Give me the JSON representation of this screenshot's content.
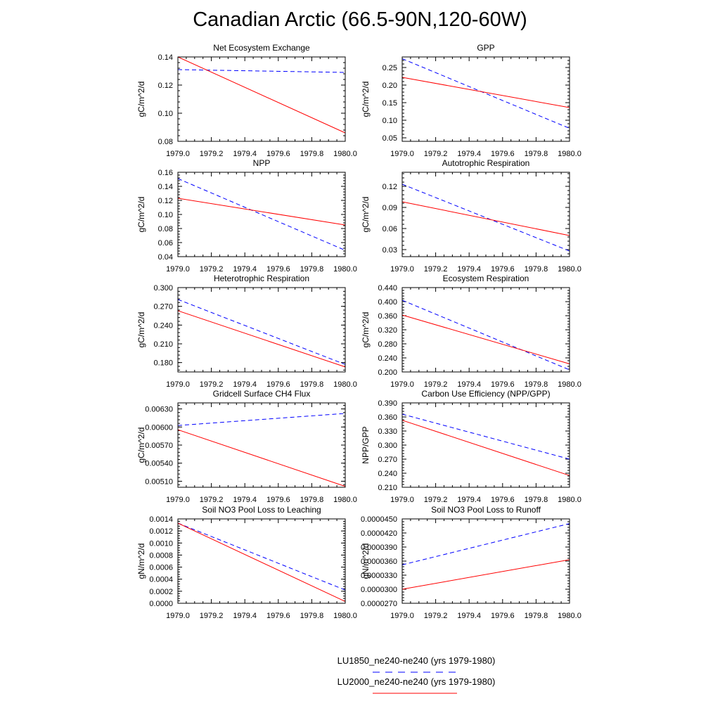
{
  "title": "Canadian Arctic (66.5-90N,120-60W)",
  "legend": [
    {
      "name": "LU1850_ne240-ne240 (yrs 1979-1980)",
      "color": "#0000ff",
      "dash": true
    },
    {
      "name": "LU2000_ne240-ne240 (yrs 1979-1980)",
      "color": "#ff0000",
      "dash": false
    }
  ],
  "chart_data": [
    {
      "type": "line",
      "title": "Net Ecosystem Exchange",
      "ylabel": "gC/m^2/d",
      "xlim": [
        1979.0,
        1980.0
      ],
      "ylim": [
        0.08,
        0.14
      ],
      "xticks": [
        "1979.0",
        "1979.2",
        "1979.4",
        "1979.6",
        "1979.8",
        "1980.0"
      ],
      "yticks": [
        "0.08",
        "0.10",
        "0.12",
        "0.14"
      ],
      "series": [
        {
          "name": "LU1850_ne240-ne240 (yrs 1979-1980)",
          "x": [
            1979.0,
            1980.0
          ],
          "values": [
            0.131,
            0.129
          ]
        },
        {
          "name": "LU2000_ne240-ne240 (yrs 1979-1980)",
          "x": [
            1979.0,
            1980.0
          ],
          "values": [
            0.14,
            0.086
          ]
        }
      ]
    },
    {
      "type": "line",
      "title": "GPP",
      "ylabel": "gC/m^2/d",
      "xlim": [
        1979.0,
        1980.0
      ],
      "ylim": [
        0.04,
        0.28
      ],
      "xticks": [
        "1979.0",
        "1979.2",
        "1979.4",
        "1979.6",
        "1979.8",
        "1980.0"
      ],
      "yticks": [
        "0.05",
        "0.10",
        "0.15",
        "0.20",
        "0.25"
      ],
      "series": [
        {
          "name": "LU1850_ne240-ne240 (yrs 1979-1980)",
          "x": [
            1979.0,
            1980.0
          ],
          "values": [
            0.275,
            0.077
          ]
        },
        {
          "name": "LU2000_ne240-ne240 (yrs 1979-1980)",
          "x": [
            1979.0,
            1980.0
          ],
          "values": [
            0.222,
            0.136
          ]
        }
      ]
    },
    {
      "type": "line",
      "title": "NPP",
      "ylabel": "gC/m^2/d",
      "xlim": [
        1979.0,
        1980.0
      ],
      "ylim": [
        0.04,
        0.16
      ],
      "xticks": [
        "1979.0",
        "1979.2",
        "1979.4",
        "1979.6",
        "1979.8",
        "1980.0"
      ],
      "yticks": [
        "0.04",
        "0.06",
        "0.08",
        "0.10",
        "0.12",
        "0.14",
        "0.16"
      ],
      "series": [
        {
          "name": "LU1850_ne240-ne240 (yrs 1979-1980)",
          "x": [
            1979.0,
            1980.0
          ],
          "values": [
            0.151,
            0.049
          ]
        },
        {
          "name": "LU2000_ne240-ne240 (yrs 1979-1980)",
          "x": [
            1979.0,
            1980.0
          ],
          "values": [
            0.123,
            0.085
          ]
        }
      ]
    },
    {
      "type": "line",
      "title": "Autotrophic Respiration",
      "ylabel": "gC/m^2/d",
      "xlim": [
        1979.0,
        1980.0
      ],
      "ylim": [
        0.02,
        0.14
      ],
      "xticks": [
        "1979.0",
        "1979.2",
        "1979.4",
        "1979.6",
        "1979.8",
        "1980.0"
      ],
      "yticks": [
        "0.03",
        "0.06",
        "0.09",
        "0.12"
      ],
      "series": [
        {
          "name": "LU1850_ne240-ne240 (yrs 1979-1980)",
          "x": [
            1979.0,
            1980.0
          ],
          "values": [
            0.123,
            0.028
          ]
        },
        {
          "name": "LU2000_ne240-ne240 (yrs 1979-1980)",
          "x": [
            1979.0,
            1980.0
          ],
          "values": [
            0.098,
            0.05
          ]
        }
      ]
    },
    {
      "type": "line",
      "title": "Heterotrophic Respiration",
      "ylabel": "gC/m^2/d",
      "xlim": [
        1979.0,
        1980.0
      ],
      "ylim": [
        0.165,
        0.3
      ],
      "xticks": [
        "1979.0",
        "1979.2",
        "1979.4",
        "1979.6",
        "1979.8",
        "1980.0"
      ],
      "yticks": [
        "0.180",
        "0.210",
        "0.240",
        "0.270",
        "0.300"
      ],
      "series": [
        {
          "name": "LU1850_ne240-ne240 (yrs 1979-1980)",
          "x": [
            1979.0,
            1980.0
          ],
          "values": [
            0.281,
            0.177
          ]
        },
        {
          "name": "LU2000_ne240-ne240 (yrs 1979-1980)",
          "x": [
            1979.0,
            1980.0
          ],
          "values": [
            0.263,
            0.173
          ]
        }
      ]
    },
    {
      "type": "line",
      "title": "Ecosystem Respiration",
      "ylabel": "gC/m^2/d",
      "xlim": [
        1979.0,
        1980.0
      ],
      "ylim": [
        0.2,
        0.44
      ],
      "xticks": [
        "1979.0",
        "1979.2",
        "1979.4",
        "1979.6",
        "1979.8",
        "1980.0"
      ],
      "yticks": [
        "0.200",
        "0.240",
        "0.280",
        "0.320",
        "0.360",
        "0.400",
        "0.440"
      ],
      "series": [
        {
          "name": "LU1850_ne240-ne240 (yrs 1979-1980)",
          "x": [
            1979.0,
            1980.0
          ],
          "values": [
            0.404,
            0.206
          ]
        },
        {
          "name": "LU2000_ne240-ne240 (yrs 1979-1980)",
          "x": [
            1979.0,
            1980.0
          ],
          "values": [
            0.362,
            0.223
          ]
        }
      ]
    },
    {
      "type": "line",
      "title": "Gridcell Surface CH4 Flux",
      "ylabel": "gC/m^2/d",
      "xlim": [
        1979.0,
        1980.0
      ],
      "ylim": [
        0.005,
        0.0064
      ],
      "xticks": [
        "1979.0",
        "1979.2",
        "1979.4",
        "1979.6",
        "1979.8",
        "1980.0"
      ],
      "yticks": [
        "0.00510",
        "0.00540",
        "0.00570",
        "0.00600",
        "0.00630"
      ],
      "series": [
        {
          "name": "LU1850_ne240-ne240 (yrs 1979-1980)",
          "x": [
            1979.0,
            1980.0
          ],
          "values": [
            0.006025,
            0.006225
          ]
        },
        {
          "name": "LU2000_ne240-ne240 (yrs 1979-1980)",
          "x": [
            1979.0,
            1980.0
          ],
          "values": [
            0.005955,
            0.005015
          ]
        }
      ]
    },
    {
      "type": "line",
      "title": "Carbon Use Efficiency (NPP/GPP)",
      "ylabel": "NPP/GPP",
      "xlim": [
        1979.0,
        1980.0
      ],
      "ylim": [
        0.21,
        0.39
      ],
      "xticks": [
        "1979.0",
        "1979.2",
        "1979.4",
        "1979.6",
        "1979.8",
        "1980.0"
      ],
      "yticks": [
        "0.210",
        "0.240",
        "0.270",
        "0.300",
        "0.330",
        "0.360",
        "0.390"
      ],
      "series": [
        {
          "name": "LU1850_ne240-ne240 (yrs 1979-1980)",
          "x": [
            1979.0,
            1980.0
          ],
          "values": [
            0.366,
            0.27
          ]
        },
        {
          "name": "LU2000_ne240-ne240 (yrs 1979-1980)",
          "x": [
            1979.0,
            1980.0
          ],
          "values": [
            0.353,
            0.235
          ]
        }
      ]
    },
    {
      "type": "line",
      "title": "Soil NO3 Pool Loss to Leaching",
      "ylabel": "gN/m^2/d",
      "xlim": [
        1979.0,
        1980.0
      ],
      "ylim": [
        0.0,
        0.0014
      ],
      "xticks": [
        "1979.0",
        "1979.2",
        "1979.4",
        "1979.6",
        "1979.8",
        "1980.0"
      ],
      "yticks": [
        "0.0000",
        "0.0002",
        "0.0004",
        "0.0006",
        "0.0008",
        "0.0010",
        "0.0012",
        "0.0014"
      ],
      "series": [
        {
          "name": "LU1850_ne240-ne240 (yrs 1979-1980)",
          "x": [
            1979.0,
            1980.0
          ],
          "values": [
            0.00133,
            0.00022
          ]
        },
        {
          "name": "LU2000_ne240-ne240 (yrs 1979-1980)",
          "x": [
            1979.0,
            1980.0
          ],
          "values": [
            0.00133,
            3e-05
          ]
        }
      ]
    },
    {
      "type": "line",
      "title": "Soil NO3 Pool Loss to Runoff",
      "ylabel": "gN/m^2/d",
      "xlim": [
        1979.0,
        1980.0
      ],
      "ylim": [
        2.7e-05,
        4.5e-05
      ],
      "xticks": [
        "1979.0",
        "1979.2",
        "1979.4",
        "1979.6",
        "1979.8",
        "1980.0"
      ],
      "yticks": [
        "0.0000270",
        "0.0000300",
        "0.0000330",
        "0.0000360",
        "0.0000390",
        "0.0000420",
        "0.0000450"
      ],
      "series": [
        {
          "name": "LU1850_ne240-ne240 (yrs 1979-1980)",
          "x": [
            1979.0,
            1980.0
          ],
          "values": [
            3.52e-05,
            4.4e-05
          ]
        },
        {
          "name": "LU2000_ne240-ne240 (yrs 1979-1980)",
          "x": [
            1979.0,
            1980.0
          ],
          "values": [
            3e-05,
            3.63e-05
          ]
        }
      ]
    }
  ]
}
